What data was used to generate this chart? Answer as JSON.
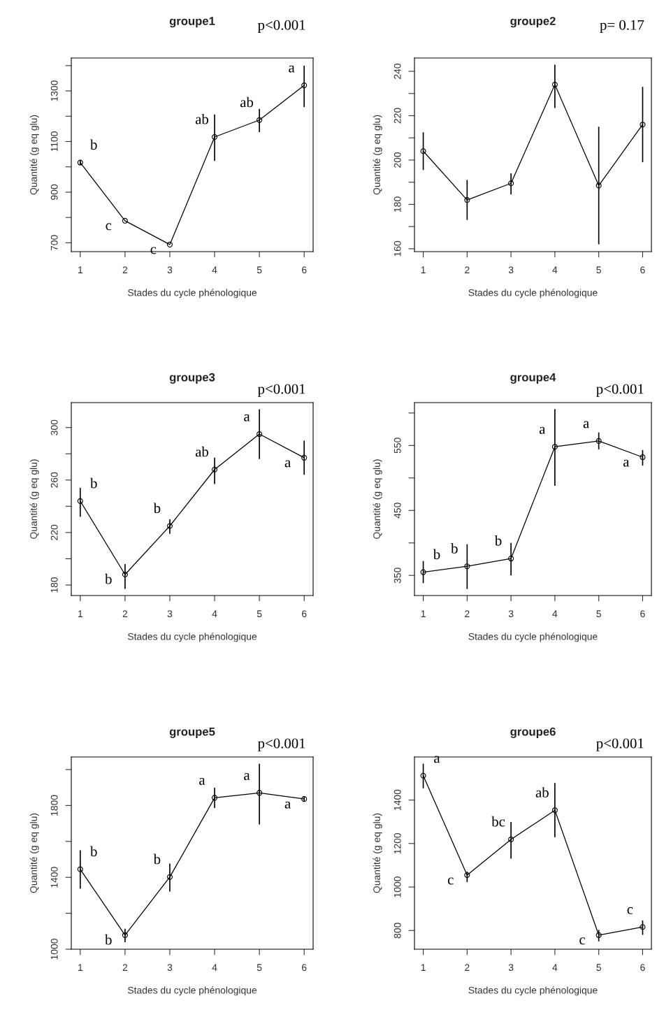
{
  "chart_data": [
    {
      "type": "line",
      "title": "groupe1",
      "xlabel": "Stades du cycle phénologique",
      "ylabel": "Quantité (g eq glu)",
      "x": [
        1,
        2,
        3,
        4,
        5,
        6
      ],
      "xlim": [
        0.8,
        6.2
      ],
      "xticks": [
        1,
        2,
        3,
        4,
        5,
        6
      ],
      "ylim": [
        665,
        1430
      ],
      "yticks": [
        700,
        {
          "value": 800,
          "label": null
        },
        900,
        {
          "value": 1000,
          "label": null
        },
        1100,
        {
          "value": 1200,
          "label": null
        },
        1300,
        {
          "value": 1400,
          "label": null
        }
      ],
      "marker": "circle",
      "line_style": "solid",
      "grid": false,
      "series": [
        {
          "color": "#000000",
          "values": [
            1017,
            787,
            693,
            1118,
            1185,
            1322
          ],
          "errors": [
            [
              1007,
              1027
            ],
            null,
            null,
            [
              1023,
              1207
            ],
            [
              1137,
              1229
            ],
            [
              1236,
              1400
            ]
          ]
        }
      ],
      "annotations": [
        "p<0.001",
        {
          "text": "b",
          "x": 1,
          "y": 1017
        },
        {
          "text": "c",
          "x": 2,
          "y": 787
        },
        {
          "text": "c",
          "x": 3,
          "y": 693
        },
        {
          "text": "ab",
          "x": 4,
          "y": 1118
        },
        {
          "text": "ab",
          "x": 5,
          "y": 1185
        },
        {
          "text": "a",
          "x": 6,
          "y": 1322
        }
      ]
    },
    {
      "type": "line",
      "title": "groupe2",
      "xlabel": "Stades du cycle phénologique",
      "ylabel": "Quantité (g eq glu)",
      "x": [
        1,
        2,
        3,
        4,
        5,
        6
      ],
      "xlim": [
        0.8,
        6.2
      ],
      "xticks": [
        1,
        2,
        3,
        4,
        5,
        6
      ],
      "ylim": [
        158.7,
        246
      ],
      "yticks": [
        160,
        {
          "value": 170,
          "label": null
        },
        180,
        {
          "value": 190,
          "label": null
        },
        200,
        {
          "value": 210,
          "label": null
        },
        220,
        {
          "value": 230,
          "label": null
        },
        240
      ],
      "marker": "circle",
      "line_style": "solid",
      "grid": false,
      "series": [
        {
          "color": "#000000",
          "values": [
            204,
            182,
            189.5,
            234,
            188.5,
            216
          ],
          "errors": [
            [
              195.5,
              212.5
            ],
            [
              173,
              191
            ],
            [
              184.5,
              194
            ],
            [
              223.5,
              243
            ],
            [
              162,
              215
            ],
            [
              199,
              233
            ]
          ]
        }
      ],
      "annotations": [
        "p= 0.17"
      ]
    },
    {
      "type": "line",
      "title": "groupe3",
      "xlabel": "Stades du cycle phénologique",
      "ylabel": "Quantité (g eq glu)",
      "x": [
        1,
        2,
        3,
        4,
        5,
        6
      ],
      "xlim": [
        0.8,
        6.2
      ],
      "xticks": [
        1,
        2,
        3,
        4,
        5,
        6
      ],
      "ylim": [
        172,
        319
      ],
      "yticks": [
        180,
        {
          "value": 200,
          "label": null
        },
        220,
        {
          "value": 240,
          "label": null
        },
        260,
        {
          "value": 280,
          "label": null
        },
        300
      ],
      "marker": "circle",
      "line_style": "solid",
      "grid": false,
      "series": [
        {
          "color": "#000000",
          "values": [
            244,
            188,
            225,
            268,
            295,
            277
          ],
          "errors": [
            [
              232,
              254
            ],
            [
              177,
              196
            ],
            [
              219,
              230
            ],
            [
              257,
              277
            ],
            [
              276,
              314
            ],
            [
              264,
              290
            ]
          ]
        }
      ],
      "annotations": [
        "p<0.001",
        {
          "text": "b",
          "x": 1,
          "y": 244
        },
        {
          "text": "b",
          "x": 2,
          "y": 188
        },
        {
          "text": "b",
          "x": 3,
          "y": 225
        },
        {
          "text": "ab",
          "x": 4,
          "y": 268
        },
        {
          "text": "a",
          "x": 5,
          "y": 295
        },
        {
          "text": "a",
          "x": 6,
          "y": 277
        }
      ]
    },
    {
      "type": "line",
      "title": "groupe4",
      "xlabel": "Stades du cycle phénologique",
      "ylabel": "Quantité (g eq glu)",
      "x": [
        1,
        2,
        3,
        4,
        5,
        6
      ],
      "xlim": [
        0.8,
        6.2
      ],
      "xticks": [
        1,
        2,
        3,
        4,
        5,
        6
      ],
      "ylim": [
        319,
        616
      ],
      "yticks": [
        350,
        {
          "value": 400,
          "label": null
        },
        450,
        {
          "value": 500,
          "label": null
        },
        550,
        {
          "value": 600,
          "label": null
        }
      ],
      "marker": "circle",
      "line_style": "solid",
      "grid": false,
      "series": [
        {
          "color": "#000000",
          "values": [
            355,
            364,
            376,
            548,
            557,
            532
          ],
          "errors": [
            [
              338,
              372
            ],
            [
              329,
              398
            ],
            [
              350,
              400
            ],
            [
              488,
              606
            ],
            [
              544,
              570
            ],
            [
              519,
              543
            ]
          ]
        }
      ],
      "annotations": [
        "p<0.001",
        {
          "text": "b",
          "x": 1,
          "y": 355
        },
        {
          "text": "b",
          "x": 2,
          "y": 364
        },
        {
          "text": "b",
          "x": 3,
          "y": 376
        },
        {
          "text": "a",
          "x": 4,
          "y": 548
        },
        {
          "text": "a",
          "x": 5,
          "y": 557
        },
        {
          "text": "a",
          "x": 6,
          "y": 532
        }
      ]
    },
    {
      "type": "line",
      "title": "groupe5",
      "xlabel": "Stades du cycle phénologique",
      "ylabel": "Quantité (g eq glu)",
      "x": [
        1,
        2,
        3,
        4,
        5,
        6
      ],
      "xlim": [
        0.8,
        6.2
      ],
      "xticks": [
        1,
        2,
        3,
        4,
        5,
        6
      ],
      "ylim": [
        1000,
        2070
      ],
      "yticks": [
        1000,
        {
          "value": 1200,
          "label": null
        },
        1400,
        {
          "value": 1600,
          "label": null
        },
        1800,
        {
          "value": 2000,
          "label": null
        }
      ],
      "marker": "circle",
      "line_style": "solid",
      "grid": false,
      "series": [
        {
          "color": "#000000",
          "values": [
            1445,
            1078,
            1402,
            1843,
            1870,
            1836
          ],
          "errors": [
            [
              1337,
              1551
            ],
            [
              1039,
              1114
            ],
            [
              1321,
              1477
            ],
            [
              1786,
              1899
            ],
            [
              1695,
              2032
            ],
            [
              1821,
              1851
            ]
          ]
        }
      ],
      "annotations": [
        "p<0.001",
        {
          "text": "b",
          "x": 1,
          "y": 1445
        },
        {
          "text": "b",
          "x": 2,
          "y": 1078
        },
        {
          "text": "b",
          "x": 3,
          "y": 1402
        },
        {
          "text": "a",
          "x": 4,
          "y": 1843
        },
        {
          "text": "a",
          "x": 5,
          "y": 1870
        },
        {
          "text": "a",
          "x": 6,
          "y": 1836
        }
      ]
    },
    {
      "type": "line",
      "title": "groupe6",
      "xlabel": "Stades du cycle phénologique",
      "ylabel": "Quantité (g eq glu)",
      "x": [
        1,
        2,
        3,
        4,
        5,
        6
      ],
      "xlim": [
        0.8,
        6.2
      ],
      "xticks": [
        1,
        2,
        3,
        4,
        5,
        6
      ],
      "ylim": [
        714,
        1598
      ],
      "yticks": [
        800,
        1000,
        1200,
        1400
      ],
      "marker": "circle",
      "line_style": "solid",
      "grid": false,
      "series": [
        {
          "color": "#000000",
          "values": [
            1512,
            1055,
            1219,
            1353,
            779,
            816
          ],
          "errors": [
            [
              1454,
              1567
            ],
            [
              1023,
              1071
            ],
            [
              1130,
              1299
            ],
            [
              1229,
              1478
            ],
            [
              750,
              803
            ],
            [
              780,
              846
            ]
          ]
        }
      ],
      "annotations": [
        "p<0.001",
        {
          "text": "a",
          "x": 1,
          "y": 1512
        },
        {
          "text": "c",
          "x": 2,
          "y": 1055
        },
        {
          "text": "bc",
          "x": 3,
          "y": 1219
        },
        {
          "text": "ab",
          "x": 4,
          "y": 1353
        },
        {
          "text": "c",
          "x": 5,
          "y": 779
        },
        {
          "text": "c",
          "x": 6,
          "y": 816
        }
      ]
    }
  ]
}
